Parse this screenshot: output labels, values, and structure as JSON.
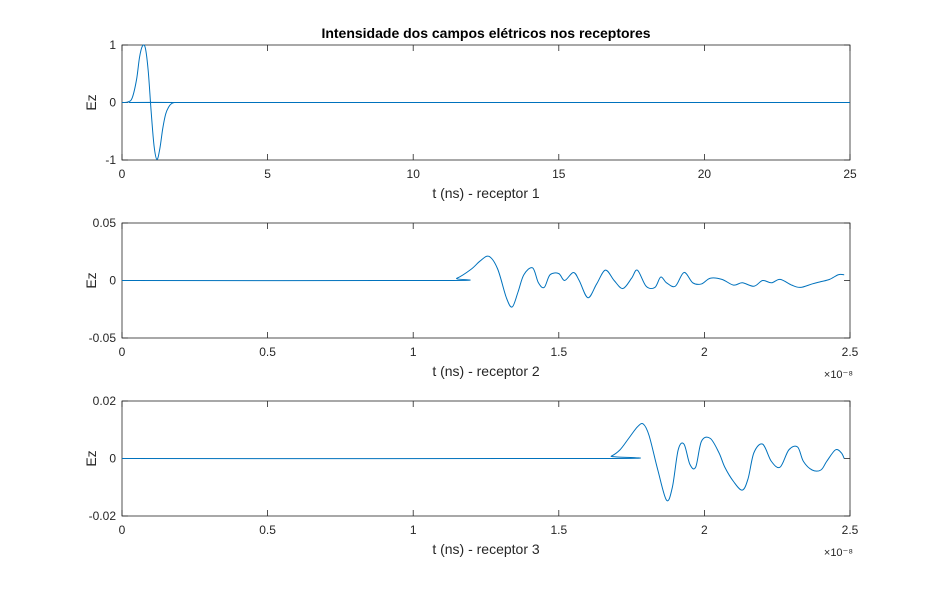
{
  "figure": {
    "title": "Intensidade dos campos elétricos nos receptores"
  },
  "colors": {
    "line": "#0072BD",
    "axes": "#262626",
    "background": "#ffffff"
  },
  "chart_data": [
    {
      "type": "line",
      "title": "Intensidade dos campos elétricos nos receptores",
      "xlabel": "t (ns) - receptor 1",
      "ylabel": "Ez",
      "xlim": [
        0,
        25
      ],
      "ylim": [
        -1,
        1
      ],
      "x_ticks": [
        "0",
        "5",
        "10",
        "15",
        "20",
        "25"
      ],
      "y_ticks": [
        "-1",
        "0",
        "1"
      ],
      "x_exponent": "",
      "grid": false,
      "series": [
        {
          "x": [
            0,
            0.2,
            0.35,
            0.5,
            0.6,
            0.7,
            0.8,
            0.9,
            1.0,
            1.1,
            1.2,
            1.3,
            1.4,
            1.5,
            1.6,
            1.7,
            1.8,
            2.0,
            25
          ],
          "y": [
            0,
            0.01,
            0.08,
            0.4,
            0.78,
            0.98,
            0.95,
            0.55,
            -0.15,
            -0.75,
            -0.99,
            -0.8,
            -0.45,
            -0.2,
            -0.08,
            -0.02,
            0.0,
            0.0,
            0.0
          ]
        }
      ]
    },
    {
      "type": "line",
      "title": "",
      "xlabel": "t (ns) - receptor 2",
      "ylabel": "Ez",
      "xlim": [
        0,
        2.5
      ],
      "ylim": [
        -0.05,
        0.05
      ],
      "x_ticks": [
        "0",
        "0.5",
        "1",
        "1.5",
        "2",
        "2.5"
      ],
      "y_ticks": [
        "-0.05",
        "0",
        "0.05"
      ],
      "x_exponent": "×10⁻⁸",
      "grid": false,
      "series": [
        {
          "x": [
            0,
            1.1,
            1.15,
            1.2,
            1.23,
            1.26,
            1.29,
            1.32,
            1.34,
            1.36,
            1.38,
            1.41,
            1.43,
            1.45,
            1.47,
            1.5,
            1.52,
            1.55,
            1.57,
            1.6,
            1.63,
            1.66,
            1.69,
            1.72,
            1.75,
            1.77,
            1.8,
            1.83,
            1.85,
            1.87,
            1.9,
            1.93,
            1.96,
            1.99,
            2.02,
            2.06,
            2.1,
            2.13,
            2.17,
            2.2,
            2.23,
            2.26,
            2.3,
            2.33,
            2.37,
            2.4,
            2.43,
            2.46,
            2.48
          ],
          "y": [
            0,
            0.0,
            0.002,
            0.01,
            0.017,
            0.021,
            0.01,
            -0.015,
            -0.023,
            -0.01,
            0.005,
            0.011,
            -0.002,
            -0.006,
            0.005,
            0.006,
            0.0,
            0.007,
            0.0,
            -0.015,
            -0.003,
            0.009,
            0.0,
            -0.007,
            0.002,
            0.009,
            -0.005,
            -0.006,
            0.003,
            -0.002,
            -0.005,
            0.007,
            -0.002,
            -0.003,
            0.002,
            0.001,
            -0.004,
            -0.002,
            -0.005,
            0.0,
            -0.002,
            0.001,
            -0.004,
            -0.006,
            -0.003,
            -0.001,
            0.001,
            0.005,
            0.005
          ]
        }
      ]
    },
    {
      "type": "line",
      "title": "",
      "xlabel": "t (ns) - receptor 3",
      "ylabel": "Ez",
      "xlim": [
        0,
        2.5
      ],
      "ylim": [
        -0.02,
        0.02
      ],
      "x_ticks": [
        "0",
        "0.5",
        "1",
        "1.5",
        "2",
        "2.5"
      ],
      "y_ticks": [
        "-0.02",
        "0",
        "0.02"
      ],
      "x_exponent": "×10⁻⁸",
      "grid": false,
      "series": [
        {
          "x": [
            0,
            1.65,
            1.68,
            1.71,
            1.74,
            1.77,
            1.79,
            1.81,
            1.84,
            1.87,
            1.89,
            1.91,
            1.93,
            1.95,
            1.97,
            1.99,
            2.02,
            2.05,
            2.07,
            2.1,
            2.13,
            2.15,
            2.17,
            2.2,
            2.23,
            2.26,
            2.29,
            2.32,
            2.34,
            2.37,
            2.4,
            2.42,
            2.45,
            2.47,
            2.48
          ],
          "y": [
            0,
            0.0,
            0.0008,
            0.003,
            0.007,
            0.011,
            0.012,
            0.008,
            -0.004,
            -0.0145,
            -0.01,
            0.003,
            0.005,
            -0.002,
            -0.003,
            0.006,
            0.007,
            0.002,
            -0.003,
            -0.008,
            -0.011,
            -0.007,
            0.002,
            0.005,
            -0.001,
            -0.003,
            0.003,
            0.004,
            -0.001,
            -0.004,
            -0.004,
            -0.001,
            0.003,
            0.002,
            0.0
          ]
        }
      ]
    }
  ]
}
